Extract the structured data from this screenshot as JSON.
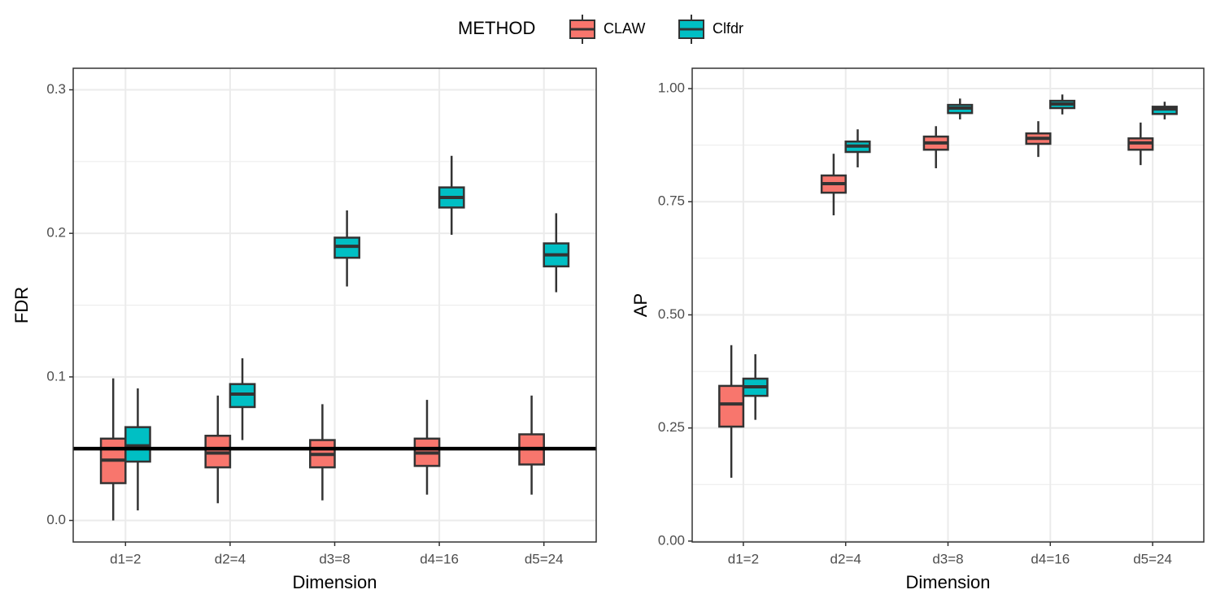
{
  "legend": {
    "title": "METHOD"
  },
  "chart_data": [
    {
      "type": "box",
      "xlabel": "Dimension",
      "ylabel": "FDR",
      "categories": [
        "d1=2",
        "d2=4",
        "d3=8",
        "d4=16",
        "d5=24"
      ],
      "ylim": [
        -0.015,
        0.315
      ],
      "yticks": [
        {
          "value": 0,
          "label": "0.0"
        },
        0.1,
        0.2,
        0.3
      ],
      "grid": true,
      "reference_line": 0.05,
      "series": [
        {
          "name": "CLAW",
          "color": "#F8766D",
          "min": [
            0.0,
            0.012,
            0.014,
            0.018,
            0.018
          ],
          "q1": [
            0.026,
            0.037,
            0.037,
            0.038,
            0.039
          ],
          "median": [
            0.042,
            0.047,
            0.046,
            0.047,
            0.05
          ],
          "q3": [
            0.057,
            0.059,
            0.056,
            0.057,
            0.06
          ],
          "max": [
            0.099,
            0.087,
            0.081,
            0.084,
            0.087
          ]
        },
        {
          "name": "Clfdr",
          "color": "#00BFC4",
          "min": [
            0.007,
            0.056,
            0.163,
            0.199,
            0.159
          ],
          "q1": [
            0.041,
            0.079,
            0.183,
            0.218,
            0.177
          ],
          "median": [
            0.052,
            0.088,
            0.191,
            0.225,
            0.185
          ],
          "q3": [
            0.065,
            0.095,
            0.197,
            0.232,
            0.193
          ],
          "max": [
            0.092,
            0.113,
            0.216,
            0.254,
            0.214
          ]
        }
      ]
    },
    {
      "type": "box",
      "xlabel": "Dimension",
      "ylabel": "AP",
      "categories": [
        "d1=2",
        "d2=4",
        "d3=8",
        "d4=16",
        "d5=24"
      ],
      "ylim": [
        -0.002,
        1.045
      ],
      "yticks": [
        {
          "value": 0,
          "label": "0.00"
        },
        0.25,
        {
          "value": 0.5,
          "label": "0.50"
        },
        0.75,
        {
          "value": 1,
          "label": "1.00"
        }
      ],
      "grid": true,
      "series": [
        {
          "name": "CLAW",
          "color": "#F8766D",
          "min": [
            0.14,
            0.72,
            0.824,
            0.849,
            0.831
          ],
          "q1": [
            0.253,
            0.77,
            0.865,
            0.878,
            0.865
          ],
          "median": [
            0.303,
            0.79,
            0.88,
            0.89,
            0.88
          ],
          "q3": [
            0.343,
            0.808,
            0.894,
            0.901,
            0.89
          ],
          "max": [
            0.433,
            0.856,
            0.917,
            0.928,
            0.925
          ]
        },
        {
          "name": "Clfdr",
          "color": "#00BFC4",
          "min": [
            0.268,
            0.826,
            0.932,
            0.943,
            0.932
          ],
          "q1": [
            0.321,
            0.86,
            0.946,
            0.957,
            0.944
          ],
          "median": [
            0.341,
            0.873,
            0.957,
            0.966,
            0.955
          ],
          "q3": [
            0.359,
            0.883,
            0.964,
            0.973,
            0.96
          ],
          "max": [
            0.413,
            0.91,
            0.978,
            0.987,
            0.971
          ]
        }
      ]
    }
  ]
}
